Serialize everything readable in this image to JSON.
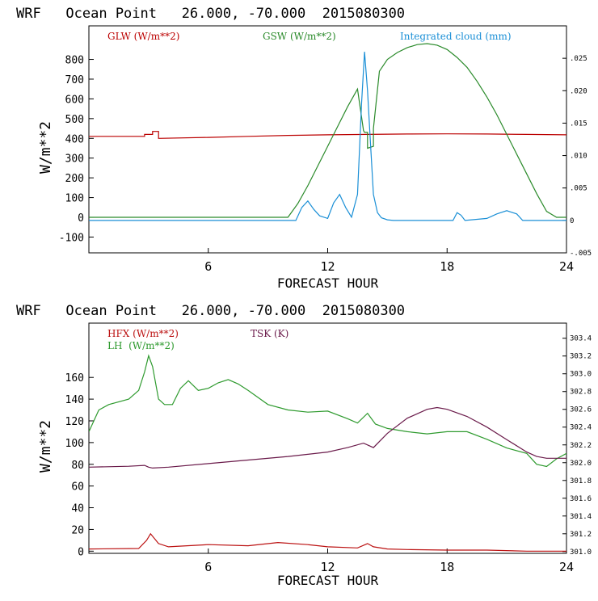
{
  "chart_data": [
    {
      "type": "line",
      "title": "WRF   Ocean Point   26.000, -70.000  2015080300",
      "xlabel": "FORECAST HOUR",
      "ylabel": "W/m**2",
      "xlim": [
        0,
        24
      ],
      "ylim": [
        -180,
        970
      ],
      "xticks": [
        6,
        12,
        18,
        24
      ],
      "yticks": [
        -100,
        0,
        100,
        200,
        300,
        400,
        500,
        600,
        700,
        800
      ],
      "y2lim": [
        -0.005,
        0.03
      ],
      "y2ticks": [
        ".025",
        ".020",
        ".015",
        ".010",
        ".005",
        "0",
        "-.005"
      ],
      "y2tick_values": [
        0.025,
        0.02,
        0.015,
        0.01,
        0.005,
        0,
        -0.005
      ],
      "series": [
        {
          "name": "GLW (W/m**2)",
          "color": "#bb0000",
          "axis": "left",
          "x": [
            0,
            2.8,
            2.8,
            3.2,
            3.2,
            3.5,
            3.5,
            6,
            8,
            10,
            12,
            14,
            16,
            18,
            20,
            22,
            24
          ],
          "y": [
            410,
            410,
            420,
            420,
            435,
            435,
            400,
            405,
            410,
            415,
            418,
            420,
            422,
            423,
            422,
            420,
            418
          ]
        },
        {
          "name": "GSW (W/m**2)",
          "color": "#2a8a2a",
          "axis": "left",
          "x": [
            0,
            10,
            10.5,
            11,
            11.5,
            12,
            12.5,
            13,
            13.5,
            13.8,
            13.85,
            14.0,
            14.0,
            14.3,
            14.3,
            14.6,
            15.0,
            15.5,
            16,
            16.5,
            17,
            17.5,
            18,
            18.5,
            19,
            19.5,
            20,
            20.5,
            21,
            21.5,
            22,
            22.5,
            23,
            23.5,
            24
          ],
          "y": [
            0,
            0,
            70,
            160,
            260,
            360,
            460,
            560,
            650,
            440,
            430,
            430,
            350,
            360,
            450,
            740,
            800,
            835,
            860,
            875,
            880,
            872,
            850,
            810,
            760,
            690,
            610,
            520,
            420,
            320,
            220,
            120,
            30,
            0,
            0
          ]
        },
        {
          "name": "Integrated cloud (mm)",
          "color": "#1a8fd6",
          "axis": "right",
          "x": [
            0,
            10.4,
            10.7,
            11.0,
            11.3,
            11.6,
            12.0,
            12.3,
            12.6,
            12.9,
            13.2,
            13.5,
            13.7,
            13.85,
            14.0,
            14.15,
            14.3,
            14.5,
            14.7,
            15.0,
            15.3,
            15.6,
            18.3,
            18.5,
            18.7,
            18.9,
            20,
            20.5,
            21,
            21.5,
            21.8,
            24
          ],
          "y": [
            0,
            0,
            0.002,
            0.003,
            0.0017,
            0.0007,
            0.0003,
            0.0027,
            0.004,
            0.002,
            0.0005,
            0.004,
            0.018,
            0.026,
            0.02,
            0.012,
            0.004,
            0.0012,
            0.0004,
            0.0001,
            0,
            0,
            0,
            0.0012,
            0.0008,
            0,
            0.0003,
            0.001,
            0.0015,
            0.001,
            0,
            0
          ]
        }
      ]
    },
    {
      "type": "line",
      "title": "WRF   Ocean Point   26.000, -70.000  2015080300",
      "xlabel": "FORECAST HOUR",
      "ylabel": "W/m**2",
      "xlim": [
        0,
        24
      ],
      "ylim": [
        -2,
        210
      ],
      "xticks": [
        6,
        12,
        18,
        24
      ],
      "yticks": [
        0,
        20,
        40,
        60,
        80,
        100,
        120,
        140,
        160
      ],
      "y2lim": [
        300.98,
        303.57
      ],
      "y2ticks": [
        "303.4",
        "303.2",
        "303.0",
        "302.8",
        "302.6",
        "302.4",
        "302.2",
        "302.0",
        "301.8",
        "301.6",
        "301.4",
        "301.2",
        "301.0"
      ],
      "y2tick_values": [
        303.4,
        303.2,
        303.0,
        302.8,
        302.6,
        302.4,
        302.2,
        302.0,
        301.8,
        301.6,
        301.4,
        301.2,
        301.0
      ],
      "series": [
        {
          "name": "HFX (W/m**2)",
          "color": "#bb1111",
          "axis": "left",
          "x": [
            0,
            2.5,
            2.9,
            3.1,
            3.5,
            4,
            6,
            8,
            9.5,
            11,
            12,
            13.5,
            14,
            14.3,
            15,
            16,
            18,
            20,
            22,
            23,
            24
          ],
          "y": [
            2,
            2.5,
            10,
            16,
            7,
            4,
            6,
            5,
            8,
            6,
            4,
            3,
            7,
            4,
            2,
            1.5,
            1,
            1,
            0,
            0,
            0
          ]
        },
        {
          "name": "LH  (W/m**2)",
          "color": "#2e9a2e",
          "axis": "left",
          "x": [
            0,
            0.5,
            1,
            2,
            2.5,
            2.8,
            3.0,
            3.2,
            3.5,
            3.8,
            4.2,
            4.6,
            5.0,
            5.5,
            6.0,
            6.5,
            7.0,
            7.5,
            8.0,
            9.0,
            10.0,
            11.0,
            12.0,
            13.0,
            13.5,
            14.0,
            14.4,
            15.0,
            16.0,
            17.0,
            18.0,
            19.0,
            20.0,
            21.0,
            22.0,
            22.5,
            23.0,
            23.5,
            24.0
          ],
          "y": [
            110,
            130,
            135,
            140,
            148,
            165,
            180,
            170,
            140,
            135,
            135,
            150,
            157,
            148,
            150,
            155,
            158,
            154,
            148,
            135,
            130,
            128,
            129,
            122,
            118,
            127,
            117,
            113,
            110,
            108,
            110,
            110,
            103,
            95,
            90,
            80,
            78,
            85,
            90
          ]
        },
        {
          "name": "TSK (K)",
          "color": "#6a1a4a",
          "axis": "right",
          "x": [
            0,
            2,
            2.8,
            3.0,
            3.2,
            4,
            6,
            8,
            10,
            12,
            13,
            13.8,
            14.0,
            14.3,
            15,
            16,
            17,
            17.5,
            18,
            19,
            20,
            21,
            22,
            22.5,
            23,
            24
          ],
          "y": [
            301.95,
            301.96,
            301.97,
            301.95,
            301.94,
            301.95,
            301.99,
            302.03,
            302.07,
            302.12,
            302.17,
            302.22,
            302.2,
            302.17,
            302.33,
            302.5,
            302.6,
            302.62,
            302.6,
            302.52,
            302.4,
            302.26,
            302.12,
            302.07,
            302.05,
            302.05
          ]
        }
      ]
    }
  ]
}
